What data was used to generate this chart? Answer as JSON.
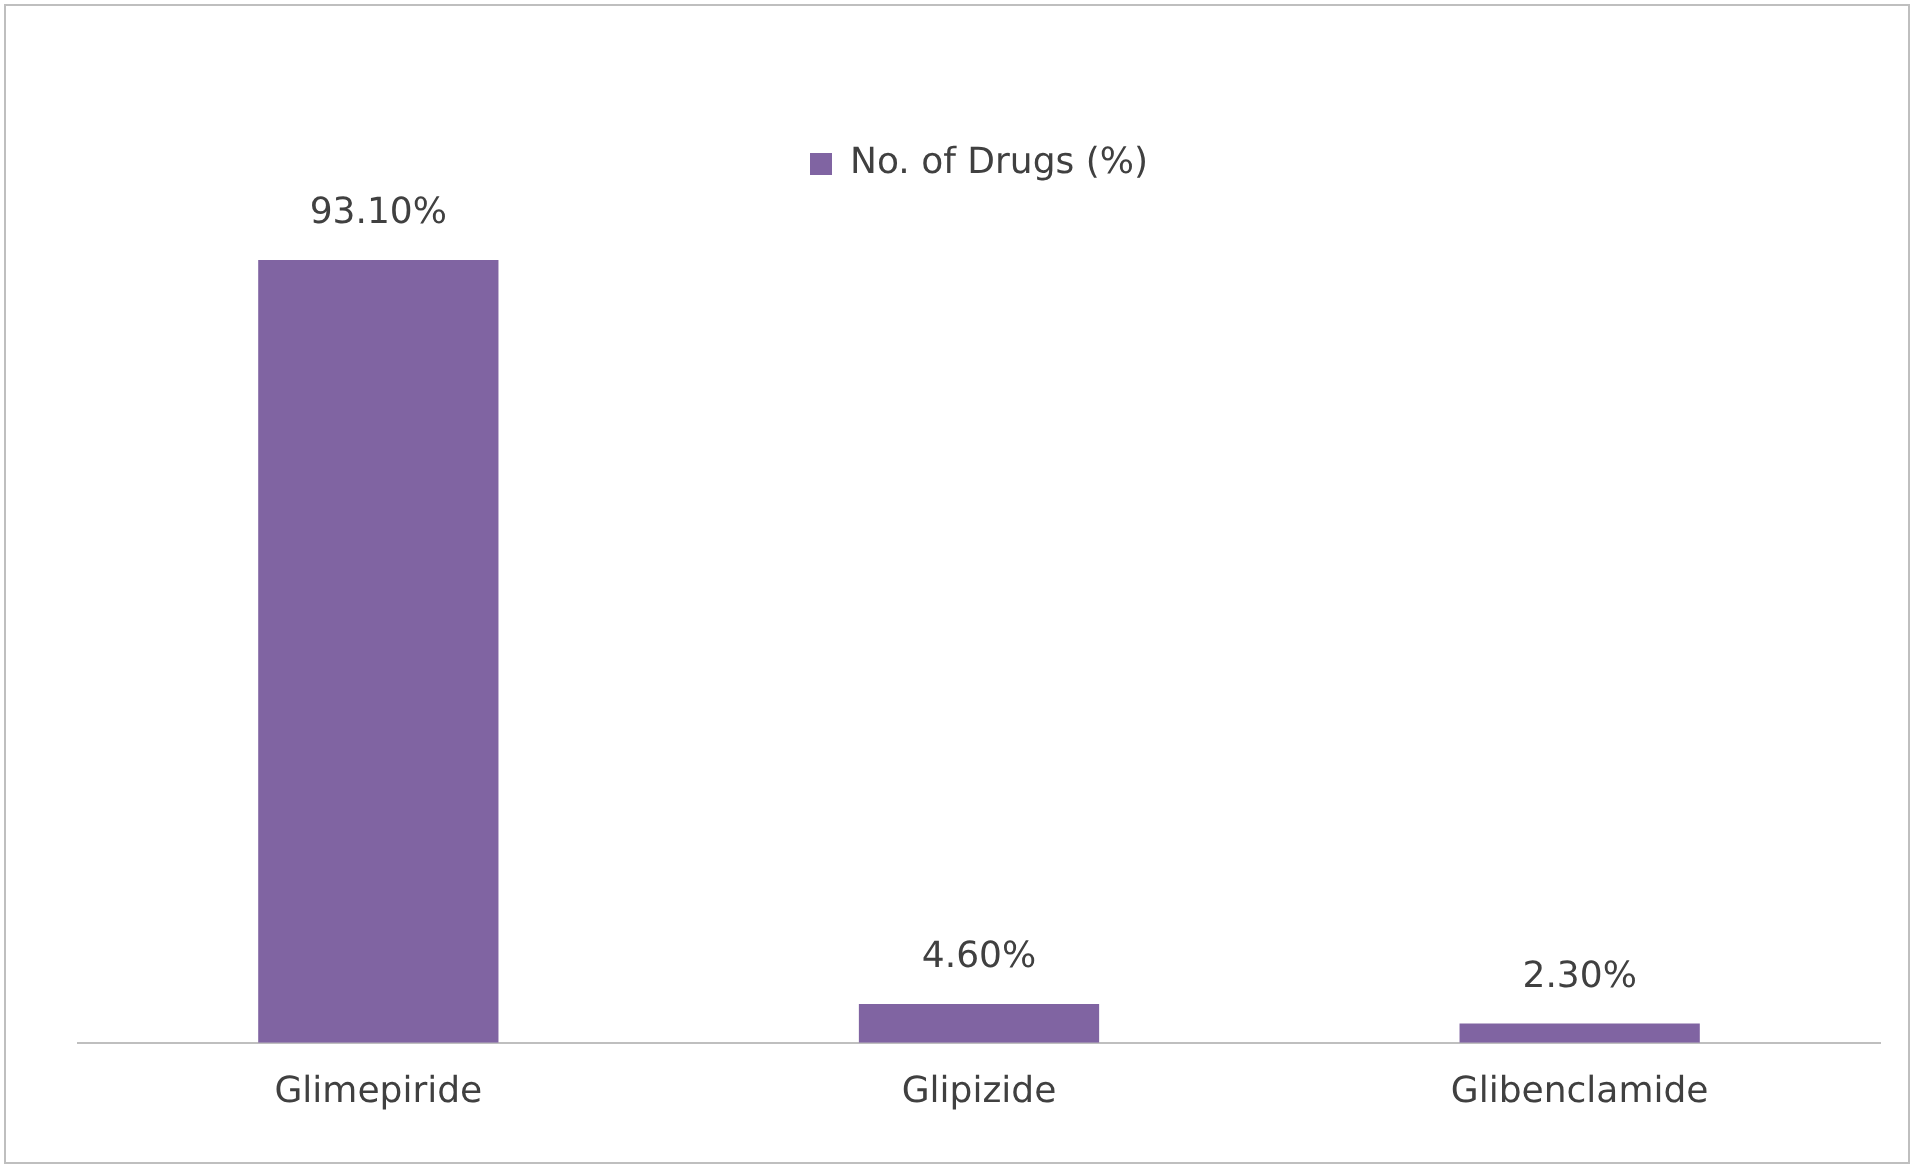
{
  "chart_data": {
    "type": "bar",
    "categories": [
      "Glimepiride",
      "Glipizide",
      "Glibenclamide"
    ],
    "series": [
      {
        "name": "No. of Drugs (%)",
        "color": "#8064a2",
        "values": [
          93.1,
          4.6,
          2.3
        ],
        "value_labels": [
          "93.10%",
          "4.60%",
          "2.30%"
        ]
      }
    ],
    "legend": "top",
    "grid": false,
    "tick_labels": "x"
  }
}
